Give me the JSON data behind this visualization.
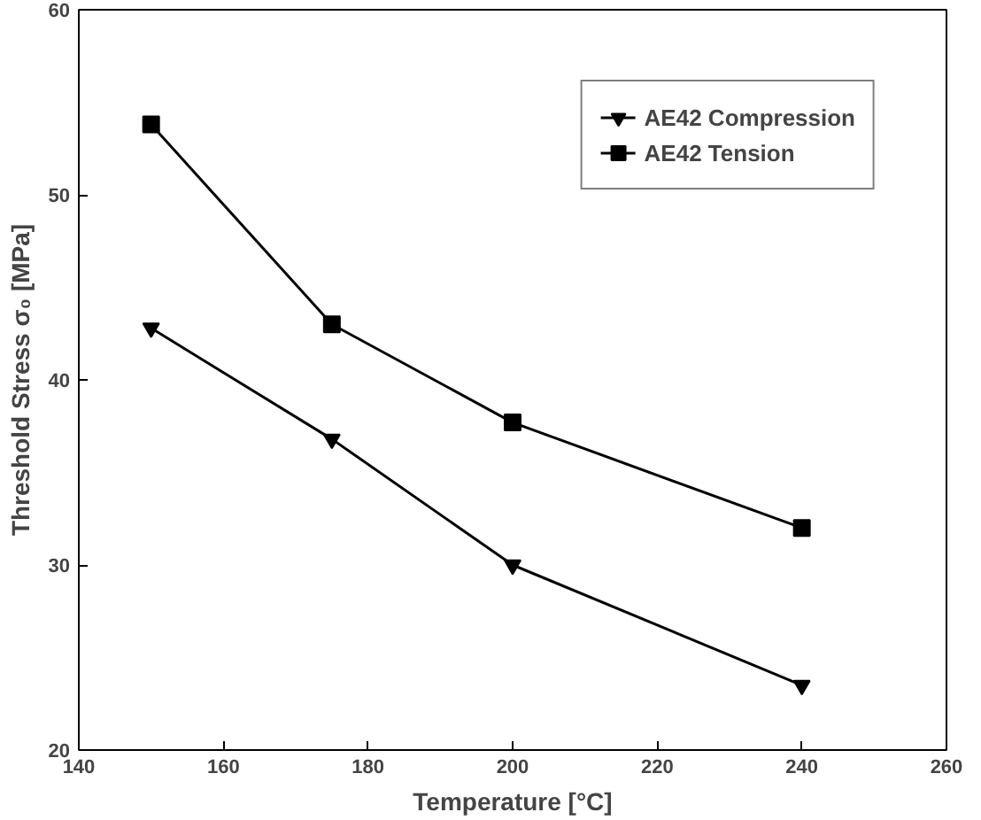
{
  "chart_data": {
    "type": "line",
    "xlabel": "Temperature [°C]",
    "ylabel": "Threshold Stress σ₀ [MPa]",
    "x": [
      150,
      175,
      200,
      240
    ],
    "series": [
      {
        "name": "AE42 Compression",
        "color": "#000000",
        "marker": "triangle",
        "values": [
          42.8,
          36.8,
          30.0,
          23.5
        ]
      },
      {
        "name": "AE42 Tension",
        "color": "#000000",
        "marker": "square",
        "values": [
          53.8,
          43.0,
          37.7,
          32.0
        ]
      }
    ],
    "xlim": [
      140,
      260
    ],
    "xticks": [
      140,
      160,
      180,
      200,
      220,
      240,
      260
    ],
    "ylim": [
      20,
      60
    ],
    "yticks": [
      20,
      30,
      40,
      50,
      60
    ],
    "legend": "top right",
    "grid": false,
    "line_style": "solid"
  }
}
